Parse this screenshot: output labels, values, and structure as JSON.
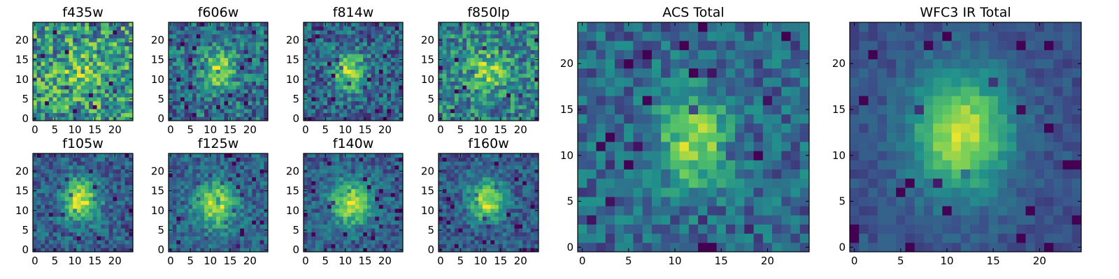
{
  "figure": {
    "colormap": "viridis",
    "colormap_stops": [
      "#440154",
      "#3b528b",
      "#21918c",
      "#5ec962",
      "#fde725"
    ]
  },
  "chart_data": [
    {
      "type": "heatmap",
      "title": "f435w",
      "grid_size": 25,
      "xlim": [
        0,
        24
      ],
      "ylim": [
        0,
        24
      ],
      "xticks": [
        0,
        5,
        10,
        15,
        20
      ],
      "yticks": [
        0,
        5,
        10,
        15,
        20
      ],
      "source": {
        "center": [
          12,
          11.5
        ],
        "sigma": [
          4.0,
          4.0
        ],
        "peak": 0.18,
        "noise": 0.42,
        "base": 0.66,
        "seed": 11
      }
    },
    {
      "type": "heatmap",
      "title": "f606w",
      "grid_size": 25,
      "xlim": [
        0,
        24
      ],
      "ylim": [
        0,
        24
      ],
      "xticks": [
        0,
        5,
        10,
        15,
        20
      ],
      "yticks": [
        0,
        5,
        10,
        15,
        20
      ],
      "source": {
        "center": [
          12,
          12.5
        ],
        "sigma": [
          3.2,
          3.6
        ],
        "peak": 0.45,
        "noise": 0.3,
        "base": 0.45,
        "seed": 23
      }
    },
    {
      "type": "heatmap",
      "title": "f814w",
      "grid_size": 25,
      "xlim": [
        0,
        24
      ],
      "ylim": [
        0,
        24
      ],
      "xticks": [
        0,
        5,
        10,
        15,
        20
      ],
      "yticks": [
        0,
        5,
        10,
        15,
        20
      ],
      "source": {
        "center": [
          11,
          12
        ],
        "sigma": [
          2.8,
          3.4
        ],
        "peak": 0.55,
        "noise": 0.28,
        "base": 0.4,
        "seed": 37
      }
    },
    {
      "type": "heatmap",
      "title": "f850lp",
      "grid_size": 25,
      "xlim": [
        0,
        24
      ],
      "ylim": [
        0,
        24
      ],
      "xticks": [
        0,
        5,
        10,
        15,
        20
      ],
      "yticks": [
        0,
        5,
        10,
        15,
        20
      ],
      "source": {
        "center": [
          12,
          12
        ],
        "sigma": [
          3.4,
          3.6
        ],
        "peak": 0.35,
        "noise": 0.32,
        "base": 0.55,
        "seed": 41
      }
    },
    {
      "type": "heatmap",
      "title": "f105w",
      "grid_size": 25,
      "xlim": [
        0,
        24
      ],
      "ylim": [
        0,
        24
      ],
      "xticks": [
        0,
        5,
        10,
        15,
        20
      ],
      "yticks": [
        0,
        5,
        10,
        15,
        20
      ],
      "source": {
        "center": [
          11.5,
          12.5
        ],
        "sigma": [
          3.0,
          3.8
        ],
        "peak": 0.62,
        "noise": 0.22,
        "base": 0.38,
        "seed": 53
      }
    },
    {
      "type": "heatmap",
      "title": "f125w",
      "grid_size": 25,
      "xlim": [
        0,
        24
      ],
      "ylim": [
        0,
        24
      ],
      "xticks": [
        0,
        5,
        10,
        15,
        20
      ],
      "yticks": [
        0,
        5,
        10,
        15,
        20
      ],
      "source": {
        "center": [
          11.5,
          11.5
        ],
        "sigma": [
          3.4,
          3.8
        ],
        "peak": 0.6,
        "noise": 0.2,
        "base": 0.4,
        "seed": 61
      }
    },
    {
      "type": "heatmap",
      "title": "f140w",
      "grid_size": 25,
      "xlim": [
        0,
        24
      ],
      "ylim": [
        0,
        24
      ],
      "xticks": [
        0,
        5,
        10,
        15,
        20
      ],
      "yticks": [
        0,
        5,
        10,
        15,
        20
      ],
      "source": {
        "center": [
          11.5,
          12
        ],
        "sigma": [
          3.4,
          4.0
        ],
        "peak": 0.58,
        "noise": 0.2,
        "base": 0.38,
        "seed": 71
      }
    },
    {
      "type": "heatmap",
      "title": "f160w",
      "grid_size": 25,
      "xlim": [
        0,
        24
      ],
      "ylim": [
        0,
        24
      ],
      "xticks": [
        0,
        5,
        10,
        15,
        20
      ],
      "yticks": [
        0,
        5,
        10,
        15,
        20
      ],
      "source": {
        "center": [
          11.5,
          12.5
        ],
        "sigma": [
          3.0,
          3.6
        ],
        "peak": 0.6,
        "noise": 0.2,
        "base": 0.36,
        "seed": 83
      }
    },
    {
      "type": "heatmap",
      "title": "ACS Total",
      "grid_size": 25,
      "xlim": [
        0,
        24
      ],
      "ylim": [
        0,
        24
      ],
      "xticks": [
        0,
        5,
        10,
        15,
        20
      ],
      "yticks": [
        0,
        5,
        10,
        15,
        20
      ],
      "source": {
        "center": [
          12,
          11.5
        ],
        "sigma": [
          2.6,
          3.4
        ],
        "peak": 0.52,
        "noise": 0.22,
        "base": 0.42,
        "seed": 97
      }
    },
    {
      "type": "heatmap",
      "title": "WFC3 IR Total",
      "grid_size": 25,
      "xlim": [
        0,
        24
      ],
      "ylim": [
        0,
        24
      ],
      "xticks": [
        0,
        5,
        10,
        15,
        20
      ],
      "yticks": [
        0,
        5,
        10,
        15,
        20
      ],
      "source": {
        "center": [
          11.5,
          12.5
        ],
        "sigma": [
          3.6,
          4.6
        ],
        "peak": 0.66,
        "noise": 0.1,
        "base": 0.32,
        "seed": 101
      }
    }
  ]
}
